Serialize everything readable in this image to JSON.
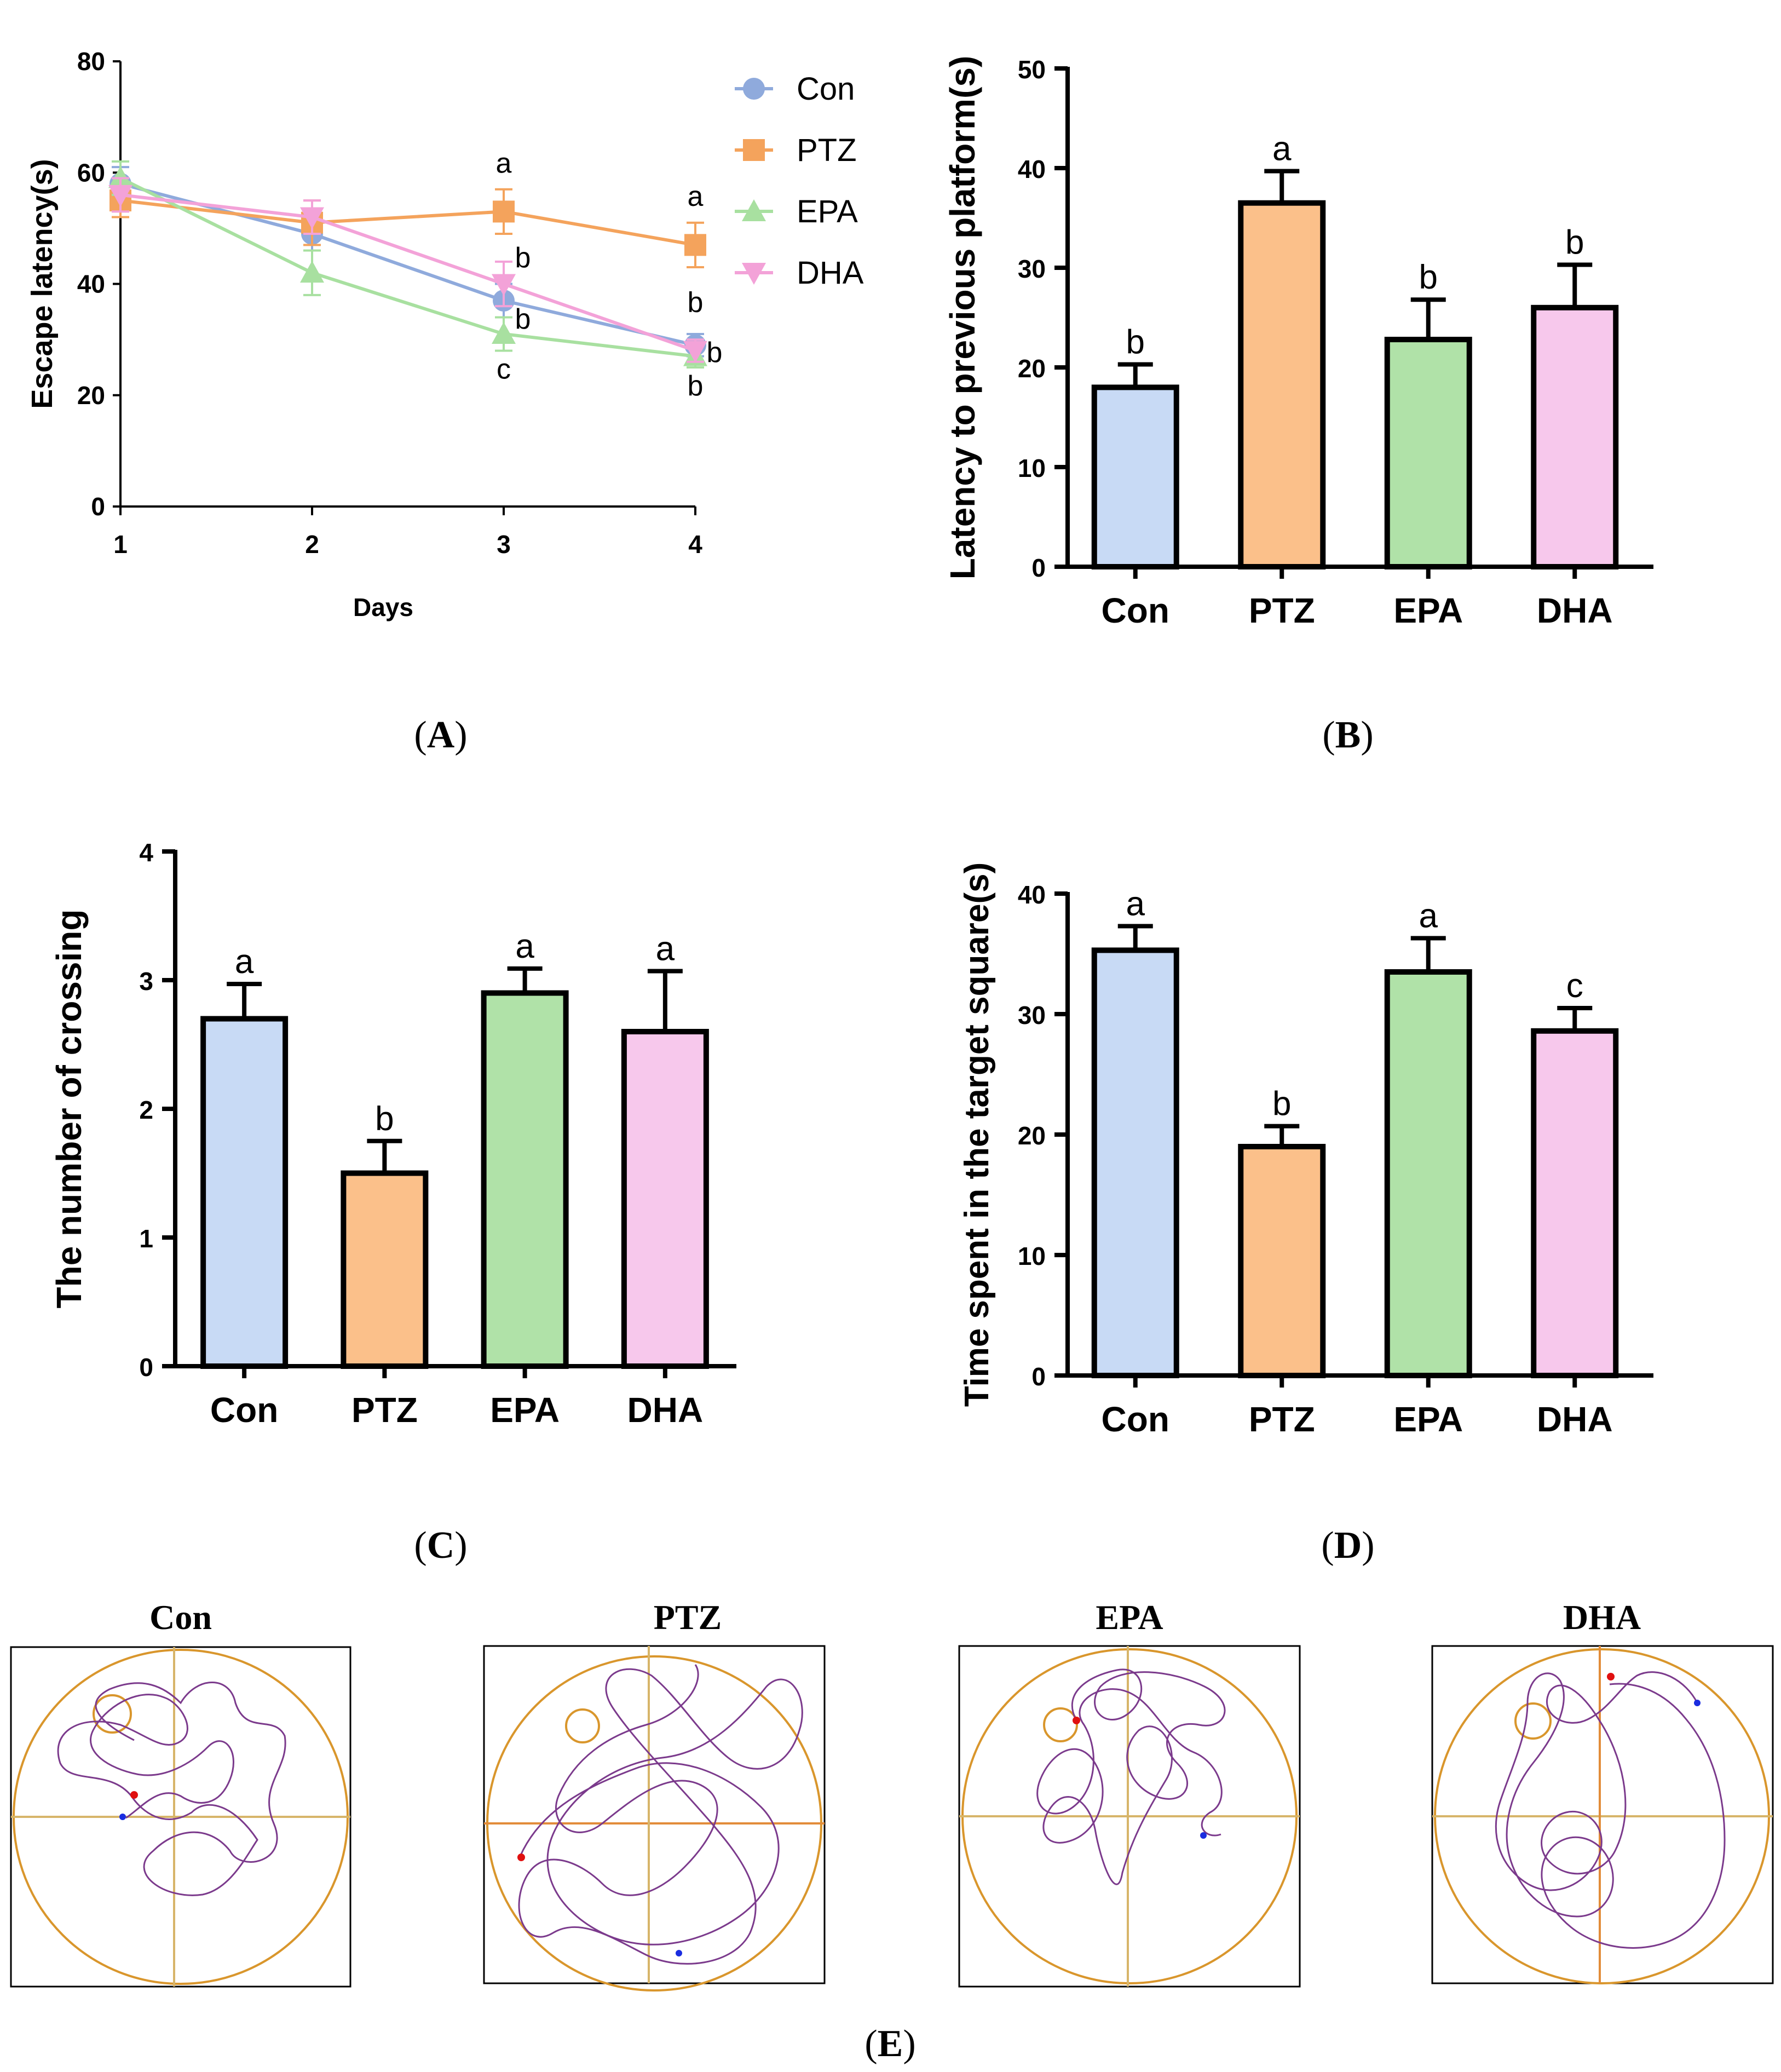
{
  "colors": {
    "Con": "#8faadc",
    "PTZ": "#f4a35c",
    "EPA": "#a8e0a0",
    "DHA": "#f3a2d8",
    "Con_fill": "#c8daf5",
    "PTZ_fill": "#fbc08a",
    "EPA_fill": "#b0e2a8",
    "DHA_fill": "#f7c8ec",
    "track": "#7b3a8c",
    "pool": "#d9962c"
  },
  "chart_data": [
    {
      "panel": "A",
      "type": "line",
      "title": "",
      "xlabel": "Days",
      "ylabel": "Escape latency(s)",
      "x": [
        1,
        2,
        3,
        4
      ],
      "x_ticks": [
        "1",
        "2",
        "3",
        "4"
      ],
      "ylim": [
        0,
        80
      ],
      "y_ticks": [
        "0",
        "20",
        "40",
        "60",
        "80"
      ],
      "legend": [
        "Con",
        "PTZ",
        "EPA",
        "DHA"
      ],
      "series": [
        {
          "name": "Con",
          "marker": "circle",
          "values": [
            58,
            49,
            37,
            29
          ],
          "errors": [
            3,
            3,
            3,
            2
          ]
        },
        {
          "name": "PTZ",
          "marker": "square",
          "values": [
            55,
            51,
            53,
            47
          ],
          "errors": [
            3,
            4,
            4,
            4
          ]
        },
        {
          "name": "EPA",
          "marker": "triangle-up",
          "values": [
            59,
            42,
            31,
            27
          ],
          "errors": [
            3,
            4,
            3,
            2
          ]
        },
        {
          "name": "DHA",
          "marker": "triangle-down",
          "values": [
            56,
            52,
            40,
            28
          ],
          "errors": [
            3,
            3,
            4,
            2
          ]
        }
      ],
      "annotations": [
        {
          "text": "a",
          "x": 3,
          "y": 60
        },
        {
          "text": "a",
          "x": 4,
          "y": 54
        },
        {
          "text": "b",
          "x": 3.1,
          "y": 43
        },
        {
          "text": "b",
          "x": 3.1,
          "y": 32
        },
        {
          "text": "c",
          "x": 3,
          "y": 23
        },
        {
          "text": "b",
          "x": 4,
          "y": 35
        },
        {
          "text": "b",
          "x": 4.1,
          "y": 26
        },
        {
          "text": "b",
          "x": 4,
          "y": 20
        }
      ]
    },
    {
      "panel": "B",
      "type": "bar",
      "title": "",
      "xlabel": "",
      "ylabel": "Latency to previous platform(s)",
      "categories": [
        "Con",
        "PTZ",
        "EPA",
        "DHA"
      ],
      "values": [
        18,
        36.5,
        22.8,
        26
      ],
      "errors": [
        2.3,
        3.2,
        4,
        4.3
      ],
      "letters": [
        "b",
        "a",
        "b",
        "b"
      ],
      "ylim": [
        0,
        50
      ],
      "y_ticks": [
        "0",
        "10",
        "20",
        "30",
        "40",
        "50"
      ]
    },
    {
      "panel": "C",
      "type": "bar",
      "title": "",
      "xlabel": "",
      "ylabel": "The number of crossing",
      "categories": [
        "Con",
        "PTZ",
        "EPA",
        "DHA"
      ],
      "values": [
        2.7,
        1.5,
        2.9,
        2.6
      ],
      "errors": [
        0.27,
        0.25,
        0.19,
        0.47
      ],
      "letters": [
        "a",
        "b",
        "a",
        "a"
      ],
      "ylim": [
        0,
        4
      ],
      "y_ticks": [
        "0",
        "1",
        "2",
        "3",
        "4"
      ]
    },
    {
      "panel": "D",
      "type": "bar",
      "title": "",
      "xlabel": "",
      "ylabel": "Time spent in the target square(s)",
      "categories": [
        "Con",
        "PTZ",
        "EPA",
        "DHA"
      ],
      "values": [
        35.3,
        19,
        33.5,
        28.6
      ],
      "errors": [
        2,
        1.7,
        2.8,
        1.9
      ],
      "letters": [
        "a",
        "b",
        "a",
        "c"
      ],
      "ylim": [
        0,
        40
      ],
      "y_ticks": [
        "0",
        "10",
        "20",
        "30",
        "40"
      ]
    }
  ],
  "panel_labels": {
    "A": "A",
    "B": "B",
    "C": "C",
    "D": "D",
    "E": "E"
  },
  "tracks": {
    "titles": [
      "Con",
      "PTZ",
      "EPA",
      "DHA"
    ]
  }
}
